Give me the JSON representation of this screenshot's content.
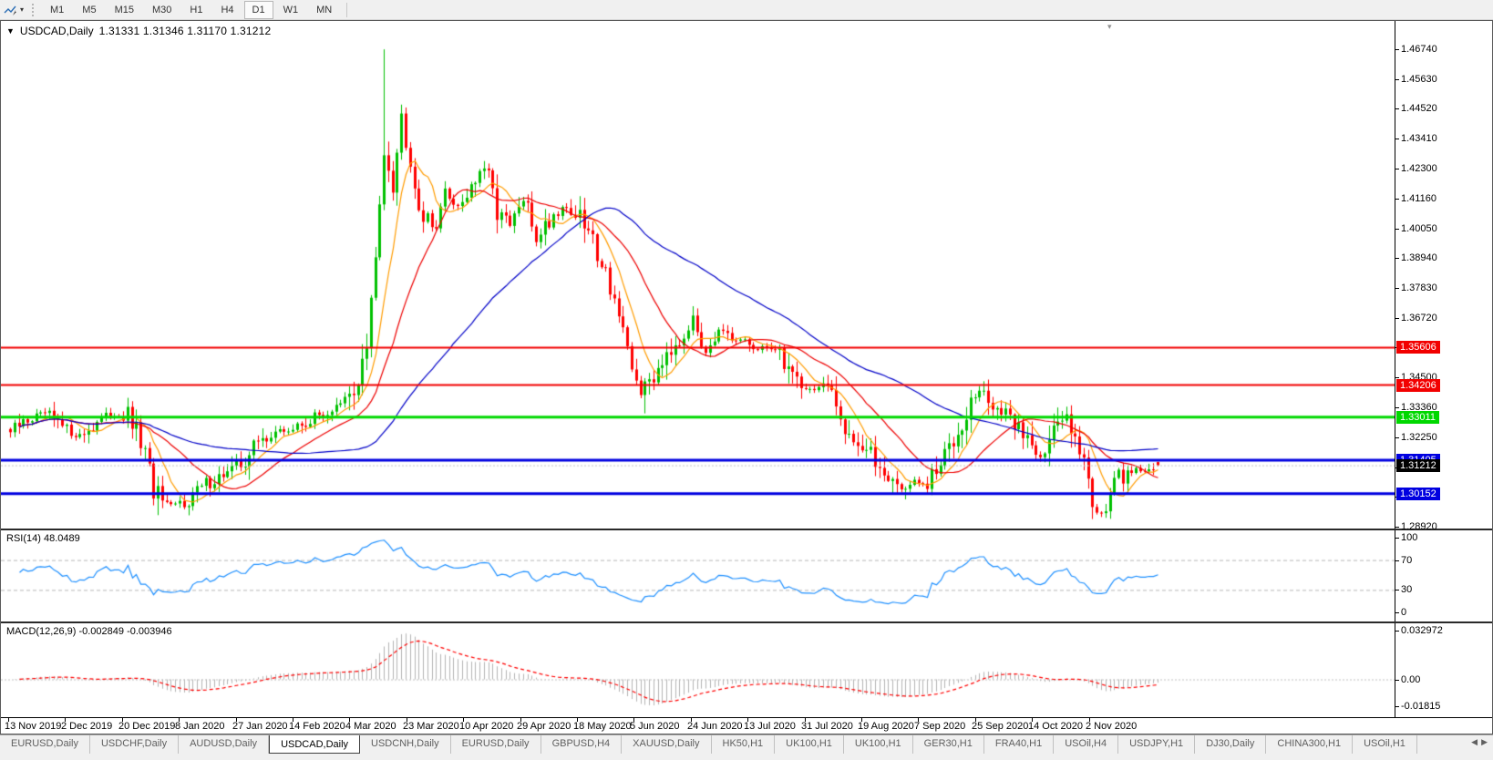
{
  "toolbar": {
    "timeframes": [
      "M1",
      "M5",
      "M15",
      "M30",
      "H1",
      "H4",
      "D1",
      "W1",
      "MN"
    ],
    "active_timeframe": "D1"
  },
  "chart_data": {
    "type": "candlestick",
    "title_symbol": "USDCAD,Daily",
    "title_ohlc": "1.31331 1.31346 1.31170 1.31212",
    "ohlc_display": {
      "open": "1.31331",
      "high": "1.31346",
      "low": "1.31170",
      "close": "1.31212"
    },
    "candle_up_color": "#00c000",
    "candle_down_color": "#ff0000",
    "price_axis": {
      "min": 1.2885,
      "max": 1.478,
      "ticks": [
        {
          "v": 1.4674,
          "t": "1.46740"
        },
        {
          "v": 1.4563,
          "t": "1.45630"
        },
        {
          "v": 1.4452,
          "t": "1.44520"
        },
        {
          "v": 1.4341,
          "t": "1.43410"
        },
        {
          "v": 1.423,
          "t": "1.42300"
        },
        {
          "v": 1.4116,
          "t": "1.41160"
        },
        {
          "v": 1.4005,
          "t": "1.40050"
        },
        {
          "v": 1.3894,
          "t": "1.38940"
        },
        {
          "v": 1.3783,
          "t": "1.37830"
        },
        {
          "v": 1.3672,
          "t": "1.36720"
        },
        {
          "v": 1.3561,
          "t": ""
        },
        {
          "v": 1.345,
          "t": "1.34500"
        },
        {
          "v": 1.3336,
          "t": "1.33360"
        },
        {
          "v": 1.3225,
          "t": "1.32250"
        },
        {
          "v": 1.3114,
          "t": ""
        },
        {
          "v": 1.3003,
          "t": ""
        },
        {
          "v": 1.2892,
          "t": "1.28920"
        }
      ]
    },
    "x_dates": [
      "13 Nov 2019",
      "2 Dec 2019",
      "20 Dec 2019",
      "8 Jan 2020",
      "27 Jan 2020",
      "14 Feb 2020",
      "4 Mar 2020",
      "23 Mar 2020",
      "10 Apr 2020",
      "29 Apr 2020",
      "18 May 2020",
      "5 Jun 2020",
      "24 Jun 2020",
      "13 Jul 2020",
      "31 Jul 2020",
      "19 Aug 2020",
      "7 Sep 2020",
      "25 Sep 2020",
      "14 Oct 2020",
      "2 Nov 2020"
    ],
    "bars_total": 265,
    "close_path_anchors": [
      [
        0,
        1.3245
      ],
      [
        4,
        1.329
      ],
      [
        8,
        1.3315
      ],
      [
        12,
        1.326
      ],
      [
        16,
        1.323
      ],
      [
        20,
        1.3285
      ],
      [
        24,
        1.331
      ],
      [
        27,
        1.33
      ],
      [
        30,
        1.321
      ],
      [
        33,
        1.303
      ],
      [
        36,
        1.296
      ],
      [
        40,
        1.2985
      ],
      [
        44,
        1.304
      ],
      [
        48,
        1.308
      ],
      [
        52,
        1.311
      ],
      [
        56,
        1.319
      ],
      [
        60,
        1.324
      ],
      [
        65,
        1.3255
      ],
      [
        69,
        1.329
      ],
      [
        73,
        1.332
      ],
      [
        76,
        1.334
      ],
      [
        79,
        1.339
      ],
      [
        82,
        1.356
      ],
      [
        84,
        1.388
      ],
      [
        86,
        1.432
      ],
      [
        88,
        1.418
      ],
      [
        90,
        1.442
      ],
      [
        92,
        1.428
      ],
      [
        94,
        1.409
      ],
      [
        97,
        1.401
      ],
      [
        100,
        1.413
      ],
      [
        103,
        1.409
      ],
      [
        106,
        1.417
      ],
      [
        109,
        1.423
      ],
      [
        112,
        1.408
      ],
      [
        115,
        1.401
      ],
      [
        118,
        1.411
      ],
      [
        121,
        1.397
      ],
      [
        124,
        1.404
      ],
      [
        127,
        1.409
      ],
      [
        130,
        1.406
      ],
      [
        133,
        1.399
      ],
      [
        136,
        1.389
      ],
      [
        139,
        1.375
      ],
      [
        142,
        1.352
      ],
      [
        145,
        1.34
      ],
      [
        148,
        1.346
      ],
      [
        151,
        1.356
      ],
      [
        154,
        1.36
      ],
      [
        157,
        1.366
      ],
      [
        160,
        1.356
      ],
      [
        163,
        1.362
      ],
      [
        166,
        1.358
      ],
      [
        169,
        1.359
      ],
      [
        172,
        1.3545
      ],
      [
        175,
        1.357
      ],
      [
        178,
        1.351
      ],
      [
        181,
        1.345
      ],
      [
        184,
        1.34
      ],
      [
        187,
        1.342
      ],
      [
        190,
        1.333
      ],
      [
        193,
        1.325
      ],
      [
        196,
        1.319
      ],
      [
        199,
        1.313
      ],
      [
        202,
        1.309
      ],
      [
        205,
        1.303
      ],
      [
        208,
        1.306
      ],
      [
        211,
        1.304
      ],
      [
        214,
        1.312
      ],
      [
        217,
        1.323
      ],
      [
        220,
        1.333
      ],
      [
        223,
        1.34
      ],
      [
        226,
        1.335
      ],
      [
        229,
        1.33
      ],
      [
        232,
        1.327
      ],
      [
        234,
        1.322
      ],
      [
        237,
        1.316
      ],
      [
        240,
        1.324
      ],
      [
        243,
        1.331
      ],
      [
        245,
        1.326
      ],
      [
        247,
        1.313
      ],
      [
        249,
        1.299
      ],
      [
        251,
        1.295
      ],
      [
        253,
        1.301
      ],
      [
        255,
        1.306
      ],
      [
        257,
        1.3095
      ],
      [
        259,
        1.3115
      ],
      [
        261,
        1.309
      ],
      [
        263,
        1.311
      ],
      [
        264,
        1.3121
      ]
    ],
    "forced_extremes": [
      {
        "i": 8,
        "high": 1.3335
      },
      {
        "i": 34,
        "low": 1.2935
      },
      {
        "i": 86,
        "high": 1.4674
      },
      {
        "i": 146,
        "low": 1.3315
      },
      {
        "i": 157,
        "high": 1.3715
      },
      {
        "i": 206,
        "low": 1.2994
      },
      {
        "i": 224,
        "high": 1.3435
      },
      {
        "i": 243,
        "high": 1.334
      },
      {
        "i": 251,
        "low": 1.2928
      }
    ],
    "last_bar": {
      "open": 1.31331,
      "high": 1.31346,
      "low": 1.3117,
      "close": 1.31212
    },
    "hlines": [
      {
        "price": 1.35606,
        "label": "1.35606",
        "color": "#f20000",
        "width": 2
      },
      {
        "price": 1.34206,
        "label": "1.34206",
        "color": "#f20000",
        "width": 2
      },
      {
        "price": 1.33011,
        "label": "1.33011",
        "color": "#00d800",
        "width": 3
      },
      {
        "price": 1.31405,
        "label": "1.31405",
        "color": "#0000e0",
        "width": 3
      },
      {
        "price": 1.30152,
        "label": "1.30152",
        "color": "#0000e0",
        "width": 3
      }
    ],
    "bid_line": {
      "price": 1.31212,
      "label": "1.31212",
      "color": "#c4c4c4",
      "label_bg": "#000000"
    },
    "moving_averages": [
      {
        "period": 8,
        "color": "#ff9c00"
      },
      {
        "period": 20,
        "color": "#ee0000"
      },
      {
        "period": 55,
        "color": "#0000c8"
      }
    ],
    "rsi": {
      "label": "RSI(14) 48.0489",
      "period": 14,
      "levels": [
        70,
        30
      ],
      "axis_ticks": [
        "100",
        "70",
        "30",
        "0"
      ],
      "color": "#1e90ff",
      "range": [
        0,
        100
      ]
    },
    "macd": {
      "label": "MACD(12,26,9) -0.002849 -0.003946",
      "params": [
        12,
        26,
        9
      ],
      "axis_ticks": [
        "0.032972",
        "0.00",
        "-0.01815"
      ],
      "range": [
        -0.01815,
        0.032972
      ],
      "histogram_color": "#b4b4b4",
      "signal_color": "#ff0000"
    }
  },
  "tabs": {
    "active_index": 3,
    "items": [
      "EURUSD,Daily",
      "USDCHF,Daily",
      "AUDUSD,Daily",
      "USDCAD,Daily",
      "USDCNH,Daily",
      "EURUSD,Daily",
      "GBPUSD,H4",
      "XAUUSD,Daily",
      "HK50,H1",
      "UK100,H1",
      "UK100,H1",
      "GER30,H1",
      "FRA40,H1",
      "USOil,H4",
      "USDJPY,H1",
      "DJ30,Daily",
      "CHINA300,H1",
      "USOil,H1"
    ]
  }
}
